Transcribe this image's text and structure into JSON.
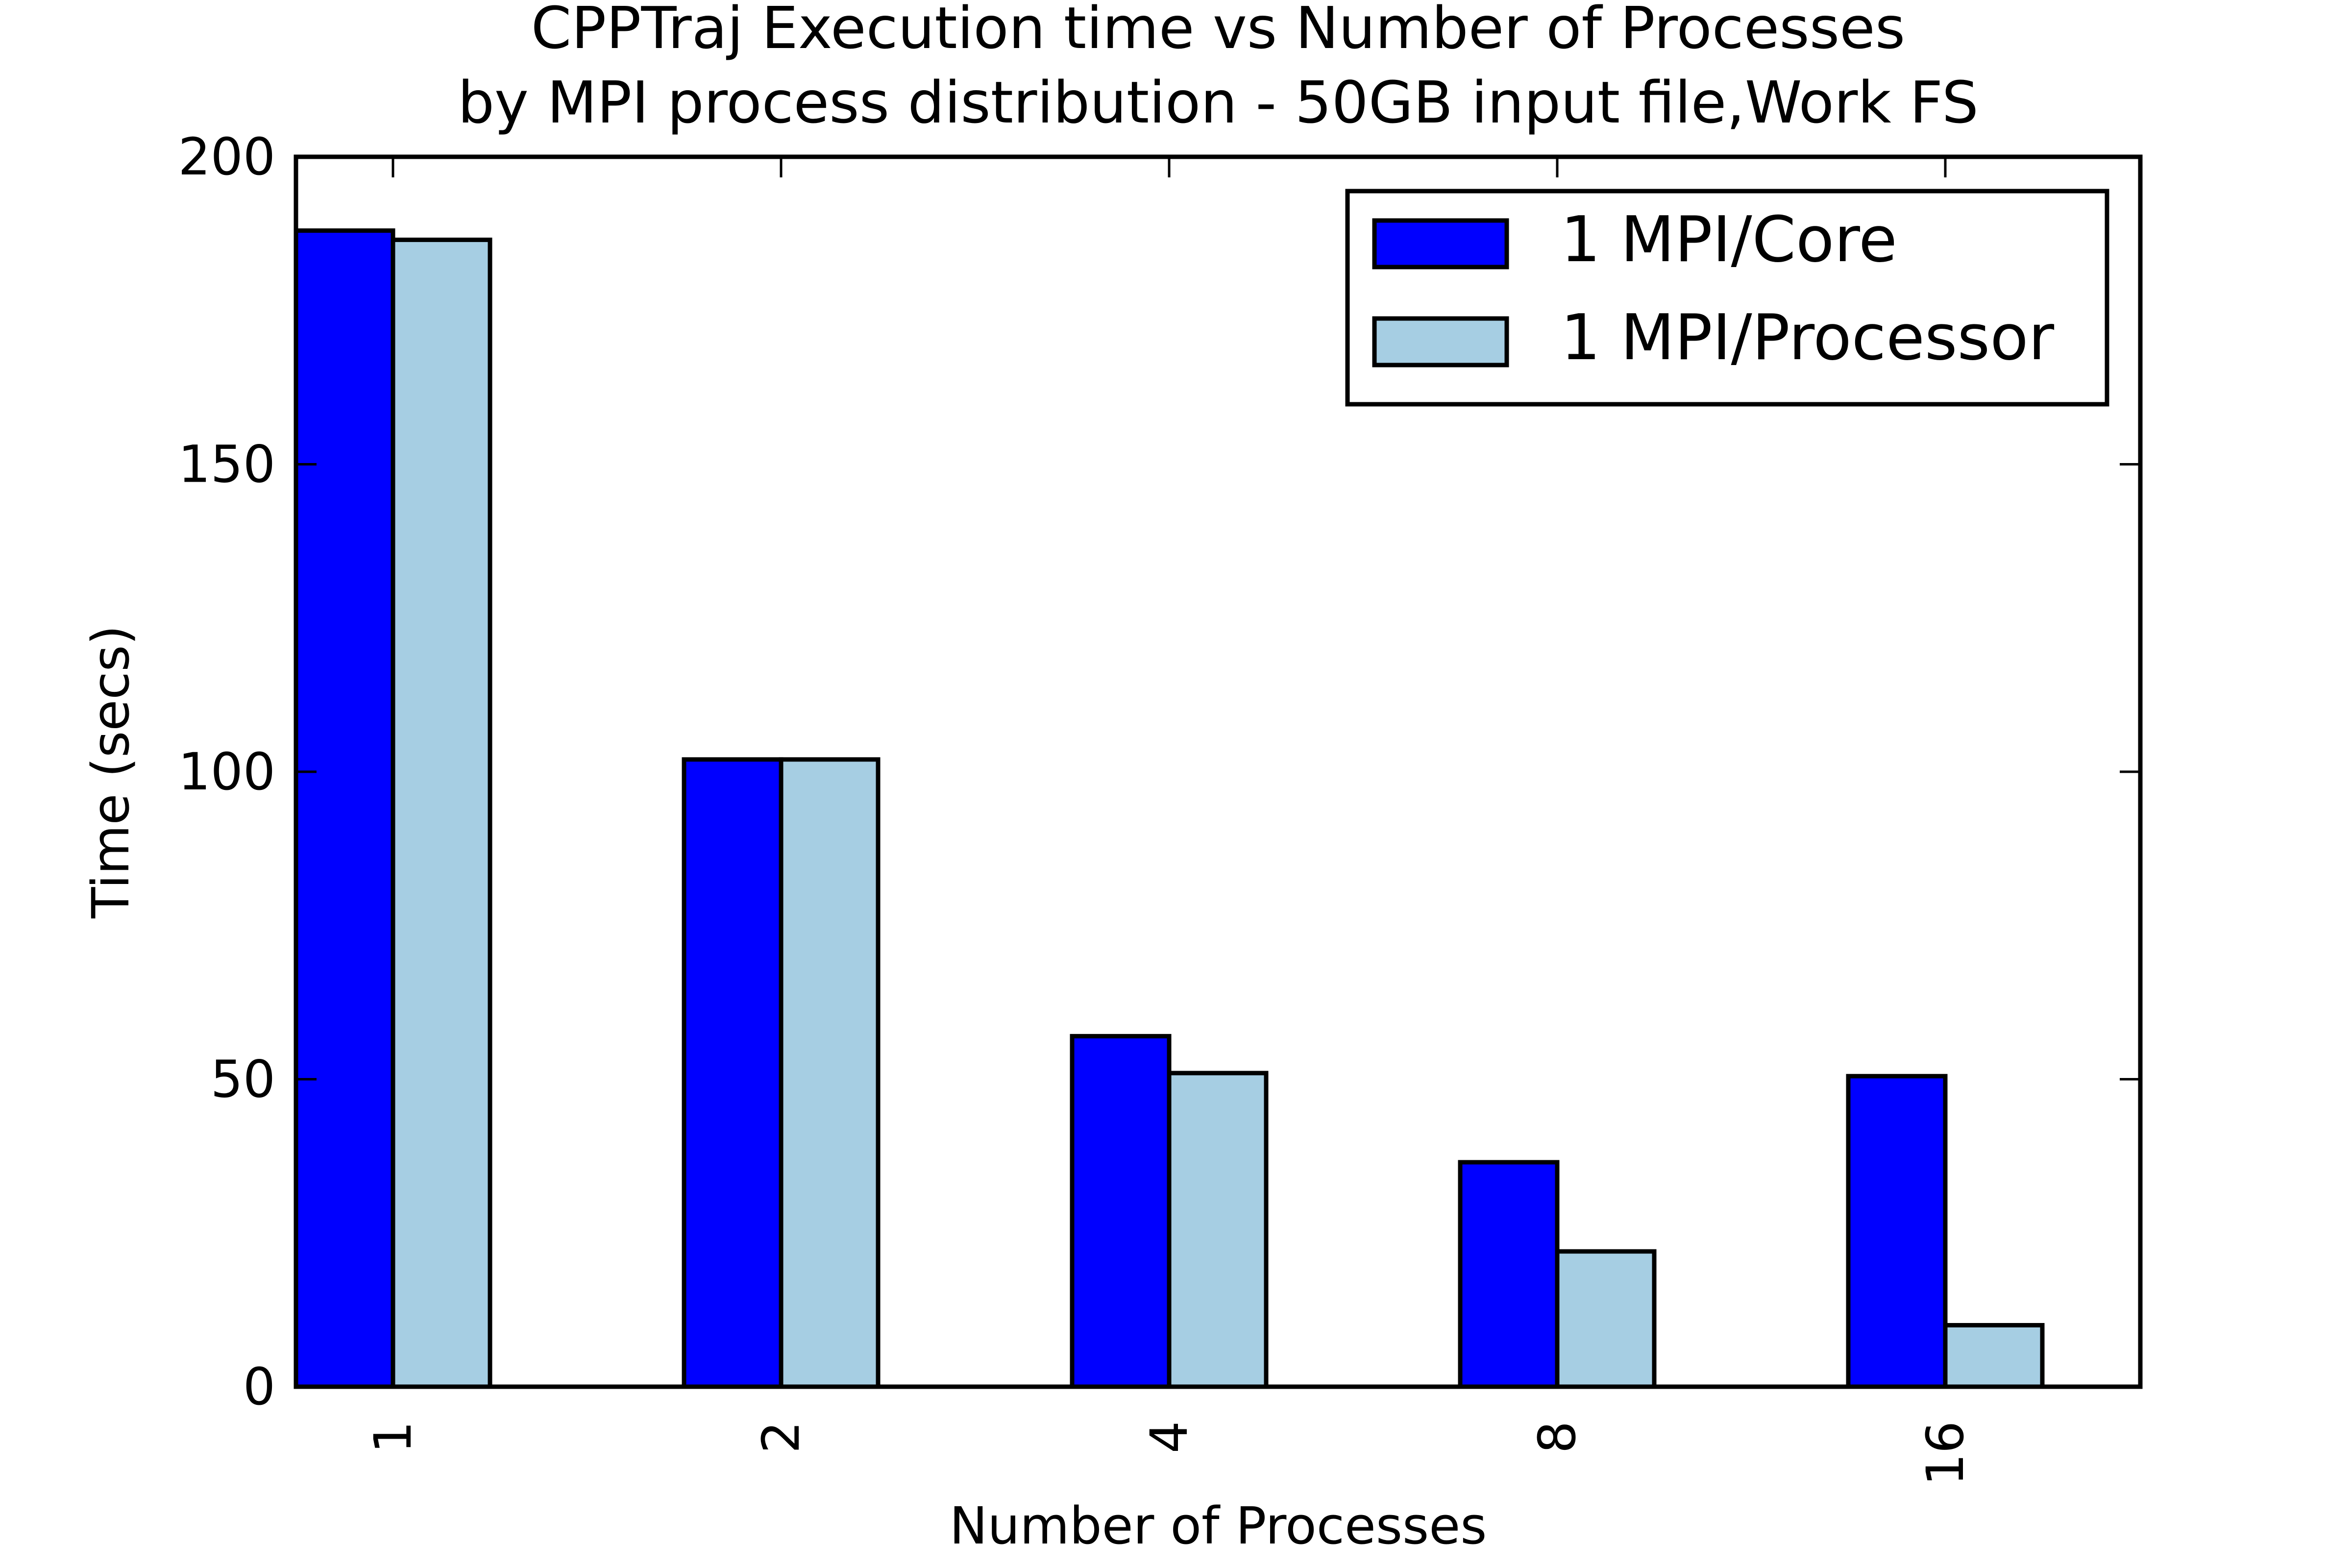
{
  "chart_data": {
    "type": "bar",
    "title": "CPPTraj Execution time vs Number of Processes",
    "subtitle": "by MPI process distribution - 50GB input file,Work FS",
    "xlabel": "Number of Processes",
    "ylabel": "Time (secs)",
    "categories": [
      "1",
      "2",
      "4",
      "8",
      "16"
    ],
    "series": [
      {
        "name": "1 MPI/Core",
        "color": "#0000ff",
        "values": [
          188,
          102,
          57,
          36.5,
          50.5
        ]
      },
      {
        "name": "1 MPI/Processor",
        "color": "#a6cee3",
        "values": [
          186.5,
          102,
          51,
          22,
          10
        ]
      }
    ],
    "ylim": [
      0,
      200
    ],
    "yticks": [
      "0",
      "50",
      "100",
      "150",
      "200"
    ],
    "legend": "top-right",
    "grid": false
  }
}
